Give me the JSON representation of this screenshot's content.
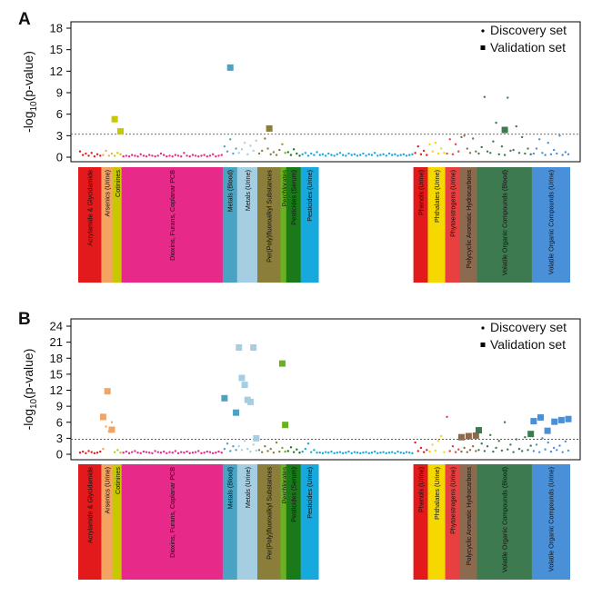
{
  "chart_data": [
    {
      "type": "scatter",
      "panel": "A",
      "ylabel": "-log10(p-value)",
      "ylim": [
        0,
        18
      ],
      "yticks": [
        0,
        3,
        6,
        9,
        12,
        15,
        18
      ],
      "threshold": 3.2,
      "legend": {
        "placement": "top-right",
        "entries": [
          "Discovery set",
          "Validation set"
        ]
      },
      "categories": [
        {
          "label": "Acrylamide & Glycidamide",
          "color": "#e31a1c",
          "x": [
            1,
            8
          ],
          "discovery": [
            0.8,
            0.3,
            0.5,
            0.2,
            0.6,
            0.1,
            0.4,
            0.2
          ],
          "validation": []
        },
        {
          "label": "Arsenics (Urine)",
          "color": "#f4a460",
          "x": [
            9,
            12
          ],
          "discovery": [
            0.3,
            0.9,
            0.2,
            0.5
          ],
          "validation": []
        },
        {
          "label": "Cotinines",
          "color": "#c8c800",
          "x": [
            13,
            15
          ],
          "discovery": [
            0.2,
            0.6,
            0.4
          ],
          "validation": [
            5.3,
            3.6
          ]
        },
        {
          "label": "Dioxins, Furans, Coplanar PCB",
          "color": "#e7298a",
          "x": [
            16,
            50
          ],
          "discovery": [
            0.1,
            0.2,
            0.1,
            0.3,
            0.2,
            0.1,
            0.4,
            0.2,
            0.1,
            0.3,
            0.2,
            0.1,
            0.2,
            0.5,
            0.3,
            0.1,
            0.2,
            0.1,
            0.3,
            0.2,
            0.1,
            0.6,
            0.2,
            0.1,
            0.3,
            0.2,
            0.1,
            0.2,
            0.3,
            0.1,
            0.2,
            0.4,
            0.1,
            0.2,
            0.3
          ],
          "validation": []
        },
        {
          "label": "Metals (Blood)",
          "color": "#4aa3c2",
          "x": [
            51,
            55
          ],
          "discovery": [
            1.5,
            0.8,
            2.5,
            0.5,
            1.2
          ],
          "validation": [
            12.5
          ]
        },
        {
          "label": "Metals (Urine)",
          "color": "#a6cee3",
          "x": [
            56,
            62
          ],
          "discovery": [
            0.6,
            1.1,
            2.0,
            0.4,
            1.6,
            0.9,
            2.3
          ],
          "validation": []
        },
        {
          "label": "Per(Poly)fluoroalkyl Substances",
          "color": "#8b7d3a",
          "x": [
            63,
            70
          ],
          "discovery": [
            0.5,
            0.9,
            2.6,
            1.2,
            0.4,
            0.7,
            0.3,
            1.0
          ],
          "validation": [
            4.0
          ]
        },
        {
          "label": "Perchlorates",
          "color": "#6ab023",
          "x": [
            71,
            72
          ],
          "discovery": [
            1.8,
            0.6
          ],
          "validation": []
        },
        {
          "label": "Pesticides (Serum)",
          "color": "#1a7a1a",
          "x": [
            73,
            77
          ],
          "discovery": [
            0.7,
            0.3,
            1.1,
            0.5,
            0.2
          ],
          "validation": []
        },
        {
          "label": "Pesticides (Urine)",
          "color": "#17a9dd",
          "x": [
            78,
            83
          ],
          "discovery": [
            0.4,
            0.6,
            0.2,
            0.5,
            0.3,
            0.7
          ],
          "validation": []
        },
        {
          "label": "",
          "color": "#17a9dd",
          "x": [
            84,
            116
          ],
          "discovery": [
            0.3,
            0.4,
            0.2,
            0.5,
            0.3,
            0.2,
            0.4,
            0.6,
            0.3,
            0.2,
            0.5,
            0.3,
            0.4,
            0.2,
            0.3,
            0.5,
            0.2,
            0.4,
            0.3,
            0.6,
            0.2,
            0.3,
            0.4,
            0.2,
            0.5,
            0.3,
            0.4,
            0.2,
            0.3,
            0.4,
            0.2,
            0.3,
            0.4
          ],
          "validation": []
        },
        {
          "label": "Phenols (Urine)",
          "color": "#e31a1c",
          "x": [
            117,
            121
          ],
          "discovery": [
            0.6,
            1.5,
            0.4,
            0.9,
            0.3
          ],
          "validation": []
        },
        {
          "label": "Phthalates (Urine)",
          "color": "#f5d800",
          "x": [
            122,
            127
          ],
          "discovery": [
            1.8,
            0.8,
            2.0,
            0.5,
            1.2,
            0.6
          ],
          "validation": []
        },
        {
          "label": "Phytoestrogens (Urine)",
          "color": "#e84040",
          "x": [
            128,
            132
          ],
          "discovery": [
            0.5,
            2.5,
            0.4,
            1.8,
            0.8
          ],
          "validation": []
        },
        {
          "label": "Polycyclic Aromatic Hydrocarbons",
          "color": "#8c6a4f",
          "x": [
            133,
            138
          ],
          "discovery": [
            2.8,
            3.0,
            1.2,
            0.6,
            2.6,
            0.8
          ],
          "validation": []
        },
        {
          "label": "Volatile Organic Compounds (Blood)",
          "color": "#3d7a4f",
          "x": [
            139,
            157
          ],
          "discovery": [
            0.5,
            1.4,
            8.4,
            0.8,
            0.6,
            2.2,
            4.8,
            0.4,
            1.5,
            0.3,
            8.3,
            0.9,
            1.0,
            4.3,
            0.6,
            2.8,
            0.5,
            1.2,
            0.4
          ],
          "validation": [
            3.8
          ]
        },
        {
          "label": "Volatile Organic Compounds (Urine)",
          "color": "#4a90d9",
          "x": [
            158,
            170
          ],
          "discovery": [
            0.5,
            1.2,
            2.5,
            0.6,
            0.3,
            2.0,
            0.4,
            1.0,
            0.5,
            3.0,
            0.3,
            0.7,
            0.4
          ],
          "validation": []
        }
      ]
    },
    {
      "type": "scatter",
      "panel": "B",
      "ylabel": "-log10(p-value)",
      "ylim": [
        0,
        24
      ],
      "yticks": [
        0,
        3,
        6,
        9,
        12,
        15,
        18,
        21,
        24
      ],
      "threshold": 2.8,
      "legend": {
        "placement": "top-right",
        "entries": [
          "Discovery set",
          "Validation set"
        ]
      },
      "categories": [
        {
          "label": "Acrylamide & Glycidamide",
          "color": "#e31a1c",
          "x": [
            1,
            8
          ],
          "discovery": [
            0.3,
            0.5,
            0.2,
            0.6,
            0.4,
            0.2,
            0.3,
            0.5
          ],
          "validation": []
        },
        {
          "label": "Arsenics (Urine)",
          "color": "#f4a460",
          "x": [
            9,
            12
          ],
          "discovery": [
            1.0,
            5.2,
            4.3,
            6.0
          ],
          "validation": [
            7.0,
            11.8,
            4.6
          ]
        },
        {
          "label": "Cotinines",
          "color": "#c8c800",
          "x": [
            13,
            15
          ],
          "discovery": [
            0.4,
            0.8,
            0.3
          ],
          "validation": []
        },
        {
          "label": "Dioxins, Furans, Coplanar PCB",
          "color": "#e7298a",
          "x": [
            16,
            50
          ],
          "discovery": [
            0.3,
            0.5,
            0.2,
            0.4,
            0.6,
            0.3,
            0.2,
            0.5,
            0.4,
            0.3,
            0.2,
            0.6,
            0.4,
            0.3,
            0.5,
            0.2,
            0.4,
            0.3,
            0.6,
            0.2,
            0.4,
            0.3,
            0.5,
            0.2,
            0.3,
            0.4,
            0.6,
            0.2,
            0.3,
            0.5,
            0.4,
            0.2,
            0.3,
            0.5,
            0.3
          ],
          "validation": []
        },
        {
          "label": "Metals (Blood)",
          "color": "#4aa3c2",
          "x": [
            51,
            55
          ],
          "discovery": [
            1.0,
            2.0,
            0.6,
            1.5,
            0.8
          ],
          "validation": [
            10.5,
            7.8
          ]
        },
        {
          "label": "Metals (Urine)",
          "color": "#a6cee3",
          "x": [
            56,
            62
          ],
          "discovery": [
            1.5,
            0.8,
            2.5,
            1.0,
            0.5,
            1.8,
            0.7
          ],
          "validation": [
            20.0,
            14.3,
            13.0,
            10.2,
            9.8,
            20.0,
            3.0
          ]
        },
        {
          "label": "Per(Poly)fluoroalkyl Substances",
          "color": "#8b7d3a",
          "x": [
            63,
            70
          ],
          "discovery": [
            0.8,
            0.4,
            1.5,
            0.6,
            1.0,
            0.3,
            2.2,
            0.5
          ],
          "validation": []
        },
        {
          "label": "Perchlorates",
          "color": "#6ab023",
          "x": [
            71,
            72
          ],
          "discovery": [
            1.2,
            0.5
          ],
          "validation": [
            17.0,
            5.5
          ]
        },
        {
          "label": "Pesticides (Serum)",
          "color": "#1a7a1a",
          "x": [
            73,
            77
          ],
          "discovery": [
            0.6,
            1.3,
            0.4,
            0.9,
            0.3
          ],
          "validation": []
        },
        {
          "label": "Pesticides (Urine)",
          "color": "#17a9dd",
          "x": [
            78,
            83
          ],
          "discovery": [
            0.5,
            1.0,
            2.0,
            0.4,
            0.8,
            0.3
          ],
          "validation": []
        },
        {
          "label": "",
          "color": "#17a9dd",
          "x": [
            84,
            116
          ],
          "discovery": [
            0.3,
            0.2,
            0.4,
            0.3,
            0.5,
            0.2,
            0.3,
            0.4,
            0.2,
            0.3,
            0.5,
            0.2,
            0.4,
            0.3,
            0.2,
            0.3,
            0.4,
            0.2,
            0.3,
            0.5,
            0.2,
            0.3,
            0.4,
            0.2,
            0.3,
            0.4,
            0.2,
            0.5,
            0.3,
            0.2,
            0.4,
            0.3,
            0.2
          ],
          "validation": []
        },
        {
          "label": "Phenols (Urine)",
          "color": "#e31a1c",
          "x": [
            117,
            121
          ],
          "discovery": [
            2.2,
            0.6,
            1.2,
            0.4,
            0.8
          ],
          "validation": []
        },
        {
          "label": "Phthalates (Urine)",
          "color": "#f5d800",
          "x": [
            122,
            127
          ],
          "discovery": [
            0.5,
            1.8,
            0.7,
            2.5,
            3.4,
            0.4
          ],
          "validation": []
        },
        {
          "label": "Phytoestrogens (Urine)",
          "color": "#e84040",
          "x": [
            128,
            132
          ],
          "discovery": [
            7.0,
            0.6,
            1.5,
            0.4,
            0.9
          ],
          "validation": []
        },
        {
          "label": "Polycyclic Aromatic Hydrocarbons",
          "color": "#8c6a4f",
          "x": [
            133,
            138
          ],
          "discovery": [
            0.5,
            1.2,
            0.4,
            0.8,
            1.5,
            0.6
          ],
          "validation": [
            3.2,
            3.4,
            3.5
          ]
        },
        {
          "label": "Volatile Organic Compounds (Blood)",
          "color": "#3d7a4f",
          "x": [
            139,
            157
          ],
          "discovery": [
            0.8,
            2.0,
            0.6,
            1.5,
            3.6,
            0.5,
            1.2,
            2.5,
            0.7,
            6.0,
            0.9,
            1.8,
            0.4,
            2.8,
            1.0,
            0.6,
            3.2,
            0.8,
            1.6
          ],
          "validation": [
            4.5,
            3.8
          ]
        },
        {
          "label": "Volatile Organic Compounds (Urine)",
          "color": "#4a90d9",
          "x": [
            158,
            170
          ],
          "discovery": [
            0.6,
            1.8,
            0.4,
            3.0,
            0.9,
            2.2,
            0.5,
            1.2,
            0.8,
            1.6,
            0.4,
            2.4,
            0.7
          ],
          "validation": [
            6.2,
            6.9,
            4.4,
            6.1,
            6.4,
            6.6
          ]
        }
      ]
    }
  ]
}
